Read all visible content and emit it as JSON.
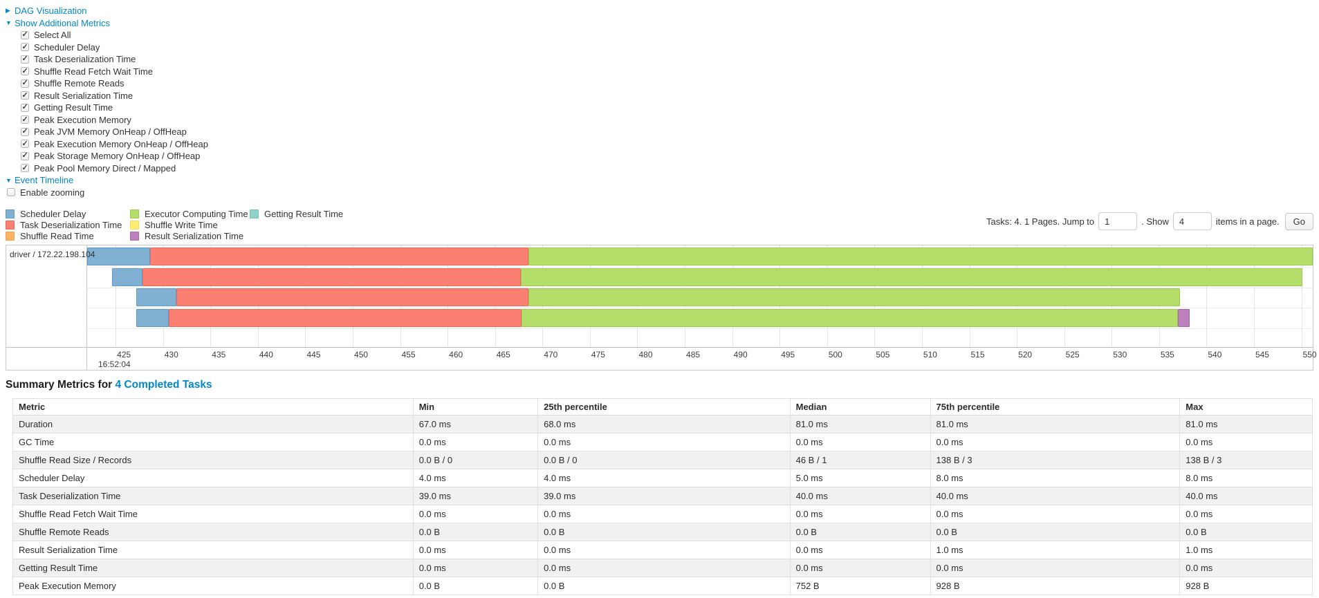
{
  "icons": {
    "collapsed": "▶",
    "expanded": "▼"
  },
  "colors": {
    "link": "#0088CC"
  },
  "dag_section": {
    "label": "DAG Visualization"
  },
  "metrics_panel": {
    "label": "Show Additional Metrics",
    "items": [
      {
        "label": "Select All",
        "checked": true
      },
      {
        "label": "Scheduler Delay",
        "checked": true
      },
      {
        "label": "Task Deserialization Time",
        "checked": true
      },
      {
        "label": "Shuffle Read Fetch Wait Time",
        "checked": true
      },
      {
        "label": "Shuffle Remote Reads",
        "checked": true
      },
      {
        "label": "Result Serialization Time",
        "checked": true
      },
      {
        "label": "Getting Result Time",
        "checked": true
      },
      {
        "label": "Peak Execution Memory",
        "checked": true
      },
      {
        "label": "Peak JVM Memory OnHeap / OffHeap",
        "checked": true
      },
      {
        "label": "Peak Execution Memory OnHeap / OffHeap",
        "checked": true
      },
      {
        "label": "Peak Storage Memory OnHeap / OffHeap",
        "checked": true
      },
      {
        "label": "Peak Pool Memory Direct / Mapped",
        "checked": true
      }
    ]
  },
  "timeline_section": {
    "label": "Event Timeline",
    "zoom_label": "Enable zooming",
    "zoom_checked": false
  },
  "legend": {
    "columns": [
      [
        {
          "type": "scheduler_delay",
          "label": "Scheduler Delay"
        },
        {
          "type": "task_deserialization",
          "label": "Task Deserialization Time"
        },
        {
          "type": "shuffle_read",
          "label": "Shuffle Read Time"
        }
      ],
      [
        {
          "type": "executor_computing",
          "label": "Executor Computing Time"
        },
        {
          "type": "shuffle_write",
          "label": "Shuffle Write Time"
        },
        {
          "type": "result_serialization",
          "label": "Result Serialization Time"
        }
      ],
      [
        {
          "type": "getting_result",
          "label": "Getting Result Time"
        }
      ]
    ]
  },
  "pagination": {
    "info": "Tasks: 4. 1 Pages. Jump to",
    "jump_value": "1",
    "show_label": ". Show",
    "show_value": "4",
    "suffix": "items in a page.",
    "go_label": "Go"
  },
  "chart_data": {
    "type": "timeline",
    "group_label": "driver / 172.22.198.104",
    "axis": {
      "min": 422.0,
      "max": 551.2,
      "ticks": [
        425,
        430,
        435,
        440,
        445,
        450,
        455,
        460,
        465,
        470,
        475,
        480,
        485,
        490,
        495,
        500,
        505,
        510,
        515,
        520,
        525,
        530,
        535,
        540,
        545,
        550
      ],
      "start_time_label": "16:52:04"
    },
    "colors": {
      "scheduler_delay": {
        "fill": "#80B1D3",
        "border": "#5E99C9"
      },
      "task_deserialization": {
        "fill": "#FB8072",
        "border": "#E9695B"
      },
      "shuffle_read": {
        "fill": "#FDB462",
        "border": "#ECA24F"
      },
      "executor_computing": {
        "fill": "#B3DE69",
        "border": "#9CCB4E"
      },
      "shuffle_write": {
        "fill": "#FFED6F",
        "border": "#EFDC55"
      },
      "result_serialization": {
        "fill": "#BC80BD",
        "border": "#A569A7"
      },
      "getting_result": {
        "fill": "#8DD3C7",
        "border": "#74C2B4"
      }
    },
    "rows": [
      {
        "segments": [
          {
            "type": "scheduler_delay",
            "start": 422.0,
            "end": 428.6
          },
          {
            "type": "task_deserialization",
            "start": 428.6,
            "end": 468.5
          },
          {
            "type": "executor_computing",
            "start": 468.5,
            "end": 551.2
          }
        ]
      },
      {
        "segments": [
          {
            "type": "scheduler_delay",
            "start": 424.6,
            "end": 427.8
          },
          {
            "type": "task_deserialization",
            "start": 427.8,
            "end": 467.7
          },
          {
            "type": "executor_computing",
            "start": 467.7,
            "end": 550.1
          }
        ]
      },
      {
        "segments": [
          {
            "type": "scheduler_delay",
            "start": 427.2,
            "end": 431.4
          },
          {
            "type": "task_deserialization",
            "start": 431.4,
            "end": 468.5
          },
          {
            "type": "executor_computing",
            "start": 468.5,
            "end": 537.2
          }
        ]
      },
      {
        "segments": [
          {
            "type": "scheduler_delay",
            "start": 427.2,
            "end": 430.6
          },
          {
            "type": "task_deserialization",
            "start": 430.6,
            "end": 467.8
          },
          {
            "type": "executor_computing",
            "start": 467.8,
            "end": 537.0
          },
          {
            "type": "result_serialization",
            "start": 537.0,
            "end": 538.2
          }
        ]
      }
    ]
  },
  "summary": {
    "title_prefix": "Summary Metrics for ",
    "title_link": "4 Completed Tasks",
    "columns": [
      "Metric",
      "Min",
      "25th percentile",
      "Median",
      "75th percentile",
      "Max"
    ],
    "rows": [
      [
        "Duration",
        "67.0 ms",
        "68.0 ms",
        "81.0 ms",
        "81.0 ms",
        "81.0 ms"
      ],
      [
        "GC Time",
        "0.0 ms",
        "0.0 ms",
        "0.0 ms",
        "0.0 ms",
        "0.0 ms"
      ],
      [
        "Shuffle Read Size / Records",
        "0.0 B / 0",
        "0.0 B / 0",
        "46 B / 1",
        "138 B / 3",
        "138 B / 3"
      ],
      [
        "Scheduler Delay",
        "4.0 ms",
        "4.0 ms",
        "5.0 ms",
        "8.0 ms",
        "8.0 ms"
      ],
      [
        "Task Deserialization Time",
        "39.0 ms",
        "39.0 ms",
        "40.0 ms",
        "40.0 ms",
        "40.0 ms"
      ],
      [
        "Shuffle Read Fetch Wait Time",
        "0.0 ms",
        "0.0 ms",
        "0.0 ms",
        "0.0 ms",
        "0.0 ms"
      ],
      [
        "Shuffle Remote Reads",
        "0.0 B",
        "0.0 B",
        "0.0 B",
        "0.0 B",
        "0.0 B"
      ],
      [
        "Result Serialization Time",
        "0.0 ms",
        "0.0 ms",
        "0.0 ms",
        "1.0 ms",
        "1.0 ms"
      ],
      [
        "Getting Result Time",
        "0.0 ms",
        "0.0 ms",
        "0.0 ms",
        "0.0 ms",
        "0.0 ms"
      ],
      [
        "Peak Execution Memory",
        "0.0 B",
        "0.0 B",
        "752 B",
        "928 B",
        "928 B"
      ]
    ]
  }
}
